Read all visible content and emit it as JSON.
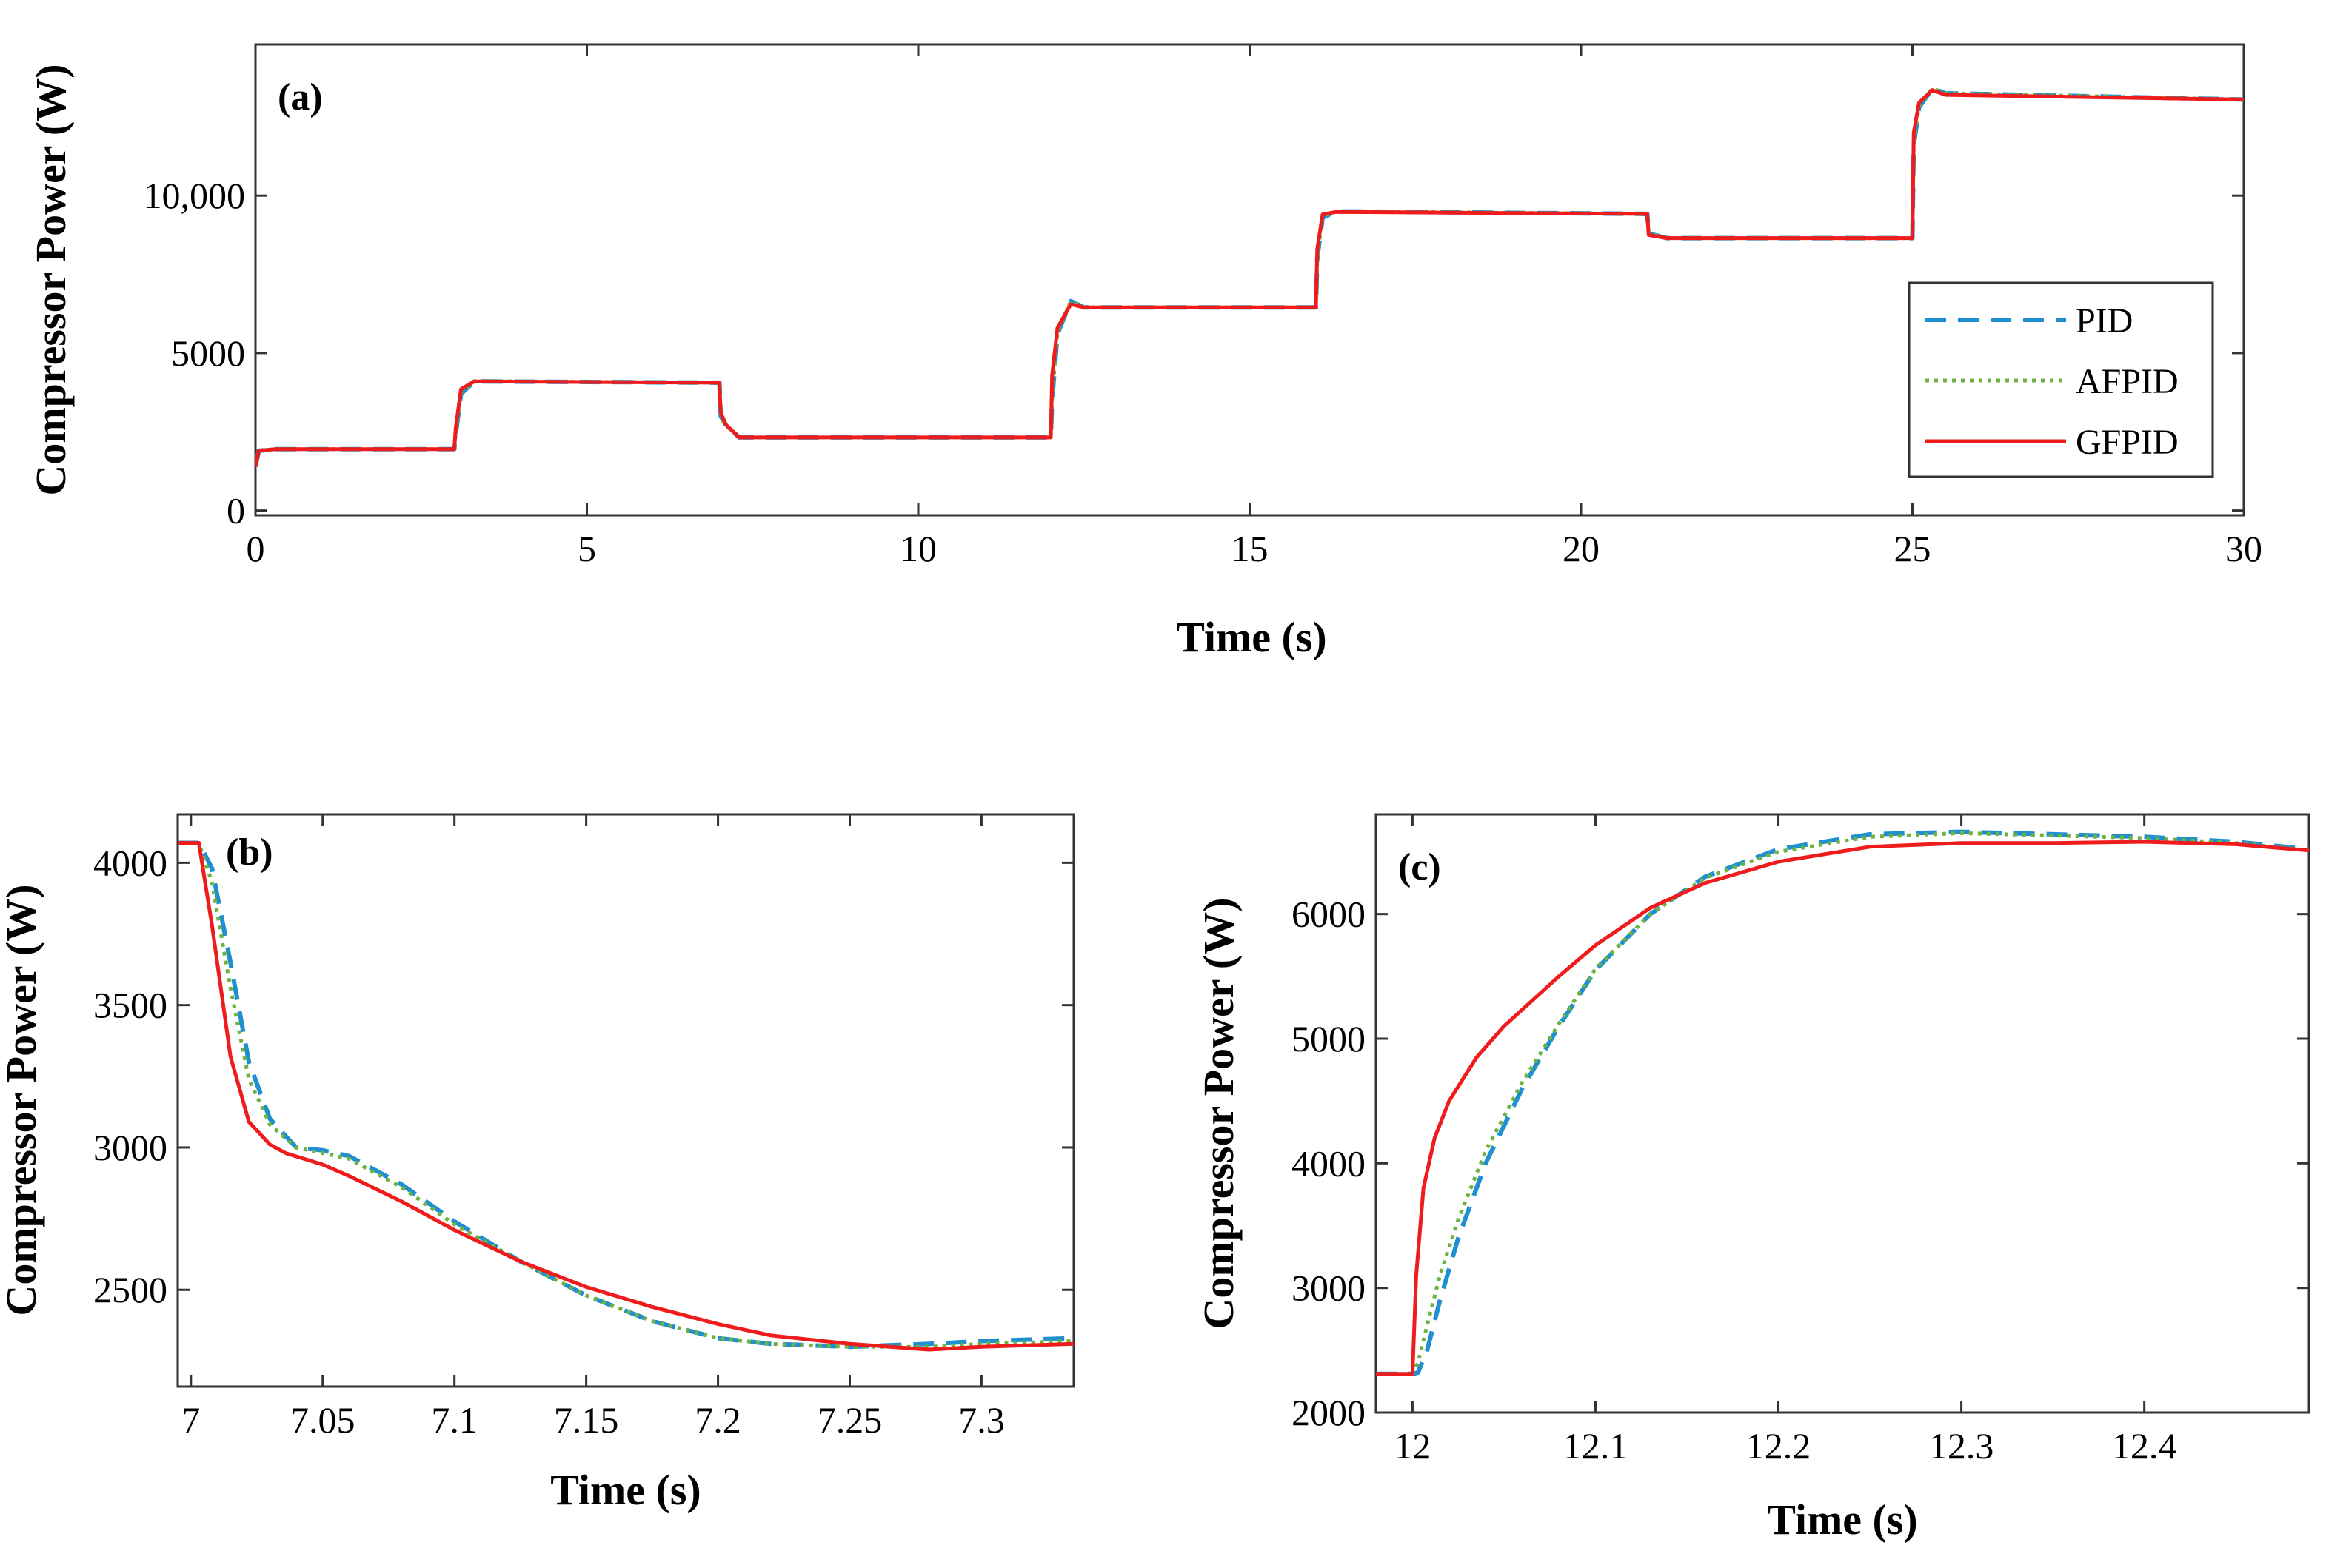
{
  "chart_data": [
    {
      "type": "line",
      "panel": "(a)",
      "xlabel": "Time (s)",
      "ylabel": "Compressor Power (W)",
      "xlim": [
        0,
        30
      ],
      "ylim": [
        -150,
        14800
      ],
      "xticks": [
        0,
        5,
        10,
        15,
        20,
        25,
        30
      ],
      "xtick_labels": [
        "0",
        "5",
        "10",
        "15",
        "20",
        "25",
        "30"
      ],
      "yticks": [
        0,
        5000,
        10000
      ],
      "ytick_labels": [
        "0",
        "5000",
        "10,000"
      ],
      "legend": [
        "PID",
        "AFPID",
        "GFPID"
      ],
      "series": [
        {
          "name": "PID",
          "color": "#1f8fd0",
          "x": [
            0,
            0.05,
            0.3,
            3.0,
            3.02,
            3.1,
            3.3,
            7.0,
            7.02,
            7.1,
            7.3,
            12.0,
            12.02,
            12.1,
            12.3,
            12.5,
            16.0,
            16.02,
            16.1,
            16.3,
            21.0,
            21.02,
            21.3,
            25.0,
            25.02,
            25.1,
            25.3,
            25.5,
            30.0
          ],
          "values": [
            1400,
            1900,
            1950,
            1950,
            2400,
            3700,
            4100,
            4060,
            3000,
            2700,
            2320,
            2320,
            3500,
            5600,
            6650,
            6450,
            6450,
            8000,
            9300,
            9500,
            9420,
            8800,
            8650,
            8650,
            11600,
            12800,
            13400,
            13250,
            13050
          ]
        },
        {
          "name": "AFPID",
          "color": "#6db33f",
          "x": [
            0,
            0.05,
            0.3,
            3.0,
            3.02,
            3.1,
            3.3,
            7.0,
            7.02,
            7.1,
            7.3,
            12.0,
            12.02,
            12.1,
            12.3,
            12.5,
            16.0,
            16.02,
            16.1,
            16.3,
            21.0,
            21.02,
            21.3,
            25.0,
            25.02,
            25.1,
            25.3,
            25.5,
            30.0
          ],
          "values": [
            1400,
            1900,
            1950,
            1950,
            2450,
            3750,
            4110,
            4060,
            2950,
            2700,
            2320,
            2320,
            3600,
            5650,
            6650,
            6450,
            6450,
            8050,
            9350,
            9500,
            9420,
            8800,
            8650,
            8650,
            11700,
            12850,
            13400,
            13250,
            13050
          ]
        },
        {
          "name": "GFPID",
          "color": "#ee1c1c",
          "x": [
            0,
            0.05,
            0.3,
            3.0,
            3.02,
            3.1,
            3.3,
            7.0,
            7.02,
            7.1,
            7.3,
            12.0,
            12.02,
            12.1,
            12.3,
            12.5,
            16.0,
            16.02,
            16.1,
            16.3,
            21.0,
            21.02,
            21.3,
            25.0,
            25.02,
            25.1,
            25.3,
            25.5,
            30.0
          ],
          "values": [
            1400,
            1900,
            1950,
            1950,
            2600,
            3850,
            4100,
            4060,
            3100,
            2720,
            2320,
            2320,
            4300,
            5800,
            6550,
            6450,
            6450,
            8300,
            9400,
            9480,
            9420,
            8750,
            8650,
            8650,
            12000,
            12950,
            13350,
            13200,
            13050
          ]
        }
      ]
    },
    {
      "type": "line",
      "panel": "(b)",
      "xlabel": "Time (s)",
      "ylabel": "Compressor Power (W)",
      "xlim": [
        6.995,
        7.335
      ],
      "ylim": [
        2160,
        4170
      ],
      "xticks": [
        7.0,
        7.05,
        7.1,
        7.15,
        7.2,
        7.25,
        7.3
      ],
      "xtick_labels": [
        "7",
        "7.05",
        "7.1",
        "7.15",
        "7.2",
        "7.25",
        "7.3"
      ],
      "yticks": [
        2500,
        3000,
        3500,
        4000
      ],
      "ytick_labels": [
        "2500",
        "3000",
        "3500",
        "4000"
      ],
      "series": [
        {
          "name": "PID",
          "color": "#1f8fd0",
          "x": [
            6.995,
            7.003,
            7.008,
            7.015,
            7.022,
            7.03,
            7.04,
            7.05,
            7.06,
            7.08,
            7.1,
            7.125,
            7.15,
            7.175,
            7.2,
            7.22,
            7.25,
            7.28,
            7.3,
            7.335
          ],
          "values": [
            4070,
            4070,
            3980,
            3650,
            3300,
            3100,
            3000,
            2990,
            2970,
            2870,
            2740,
            2600,
            2480,
            2390,
            2330,
            2310,
            2300,
            2310,
            2320,
            2330
          ]
        },
        {
          "name": "AFPID",
          "color": "#6db33f",
          "x": [
            6.995,
            7.003,
            7.008,
            7.015,
            7.022,
            7.03,
            7.04,
            7.05,
            7.06,
            7.08,
            7.1,
            7.125,
            7.15,
            7.175,
            7.2,
            7.22,
            7.25,
            7.28,
            7.3,
            7.335
          ],
          "values": [
            4070,
            4070,
            3930,
            3560,
            3240,
            3080,
            3000,
            2980,
            2960,
            2860,
            2730,
            2600,
            2480,
            2390,
            2330,
            2310,
            2300,
            2300,
            2310,
            2320
          ]
        },
        {
          "name": "GFPID",
          "color": "#ee1c1c",
          "x": [
            6.995,
            7.003,
            7.008,
            7.015,
            7.022,
            7.03,
            7.036,
            7.05,
            7.06,
            7.08,
            7.1,
            7.125,
            7.15,
            7.175,
            7.2,
            7.22,
            7.25,
            7.28,
            7.3,
            7.335
          ],
          "values": [
            4070,
            4070,
            3780,
            3320,
            3090,
            3010,
            2980,
            2940,
            2900,
            2810,
            2710,
            2600,
            2510,
            2440,
            2380,
            2340,
            2310,
            2290,
            2300,
            2310
          ]
        }
      ]
    },
    {
      "type": "line",
      "panel": "(c)",
      "xlabel": "Time (s)",
      "ylabel": "Compressor Power (W)",
      "xlim": [
        11.98,
        12.49
      ],
      "ylim": [
        2000,
        6800
      ],
      "xticks": [
        12.0,
        12.1,
        12.2,
        12.3,
        12.4
      ],
      "xtick_labels": [
        "12",
        "12.1",
        "12.2",
        "12.3",
        "12.4"
      ],
      "yticks": [
        2000,
        3000,
        4000,
        5000,
        6000
      ],
      "ytick_labels": [
        "2000",
        "3000",
        "4000",
        "5000",
        "6000"
      ],
      "series": [
        {
          "name": "PID",
          "color": "#1f8fd0",
          "x": [
            11.98,
            12.0,
            12.003,
            12.008,
            12.015,
            12.025,
            12.04,
            12.06,
            12.08,
            12.1,
            12.13,
            12.16,
            12.2,
            12.25,
            12.3,
            12.35,
            12.4,
            12.45,
            12.49
          ],
          "values": [
            2310,
            2310,
            2320,
            2500,
            2900,
            3400,
            4000,
            4600,
            5100,
            5550,
            6000,
            6300,
            6520,
            6640,
            6660,
            6640,
            6620,
            6580,
            6520
          ]
        },
        {
          "name": "AFPID",
          "color": "#6db33f",
          "x": [
            11.98,
            12.0,
            12.003,
            12.008,
            12.015,
            12.025,
            12.04,
            12.06,
            12.08,
            12.1,
            12.13,
            12.16,
            12.2,
            12.25,
            12.3,
            12.35,
            12.4,
            12.45,
            12.49
          ],
          "values": [
            2310,
            2310,
            2400,
            2700,
            3100,
            3550,
            4100,
            4650,
            5120,
            5560,
            6000,
            6290,
            6500,
            6620,
            6650,
            6630,
            6610,
            6570,
            6510
          ]
        },
        {
          "name": "GFPID",
          "color": "#ee1c1c",
          "x": [
            11.98,
            12.0,
            12.002,
            12.006,
            12.012,
            12.02,
            12.035,
            12.05,
            12.08,
            12.1,
            12.13,
            12.16,
            12.2,
            12.25,
            12.3,
            12.35,
            12.4,
            12.45,
            12.49
          ],
          "values": [
            2310,
            2310,
            3100,
            3800,
            4200,
            4500,
            4850,
            5100,
            5500,
            5750,
            6050,
            6250,
            6420,
            6540,
            6570,
            6570,
            6580,
            6560,
            6510
          ]
        }
      ]
    }
  ]
}
